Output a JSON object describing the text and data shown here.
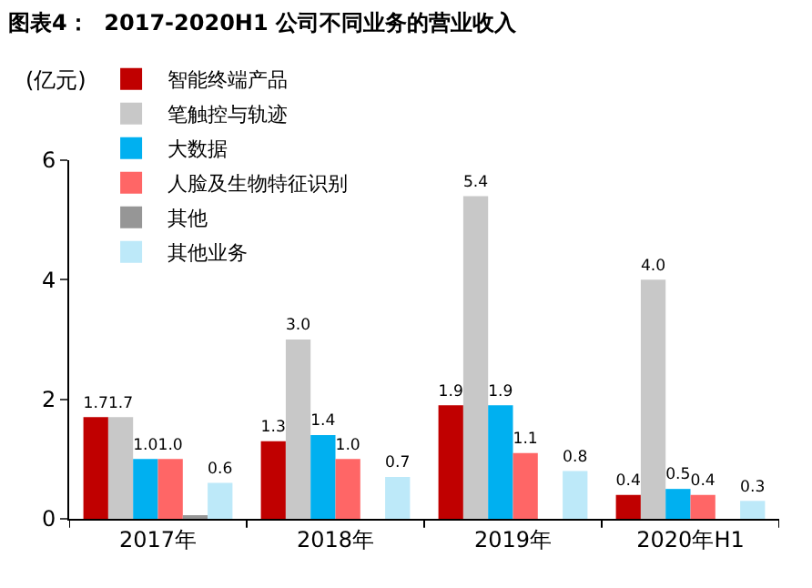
{
  "chart_data": {
    "type": "bar",
    "title": "图表4：  2017-2020H1 公司不同业务的营业收入",
    "ylabel": "(亿元)",
    "categories": [
      "2017年",
      "2018年",
      "2019年",
      "2020年H1"
    ],
    "series": [
      {
        "name": "智能终端产品",
        "color": "#c00000",
        "values": [
          1.7,
          1.3,
          1.9,
          0.4
        ],
        "value_labels": [
          "1.7",
          "1.3",
          "1.9",
          "0.4"
        ]
      },
      {
        "name": "笔触控与轨迹",
        "color": "#c8c8c8",
        "values": [
          1.7,
          3.0,
          5.4,
          4.0
        ],
        "value_labels": [
          "1.7",
          "3.0",
          "5.4",
          "4.0"
        ]
      },
      {
        "name": "大数据",
        "color": "#00b0f0",
        "values": [
          1.0,
          1.4,
          1.9,
          0.5
        ],
        "value_labels": [
          "1.0",
          "1.4",
          "1.9",
          "0.5"
        ]
      },
      {
        "name": "人脸及生物特征识别",
        "color": "#ff6666",
        "values": [
          1.0,
          1.0,
          1.1,
          0.4
        ],
        "value_labels": [
          "1.0",
          "1.0",
          "1.1",
          "0.4"
        ]
      },
      {
        "name": "其他",
        "color": "#969696",
        "values": [
          0.05,
          null,
          null,
          null
        ],
        "value_labels": [
          null,
          null,
          null,
          null
        ]
      },
      {
        "name": "其他业务",
        "color": "#bde9f9",
        "values": [
          0.6,
          0.7,
          0.8,
          0.3
        ],
        "value_labels": [
          "0.6",
          "0.7",
          "0.8",
          "0.3"
        ]
      }
    ],
    "ylim": [
      0,
      6
    ],
    "yticks": [
      0,
      2,
      4,
      6
    ],
    "legend": "top"
  }
}
